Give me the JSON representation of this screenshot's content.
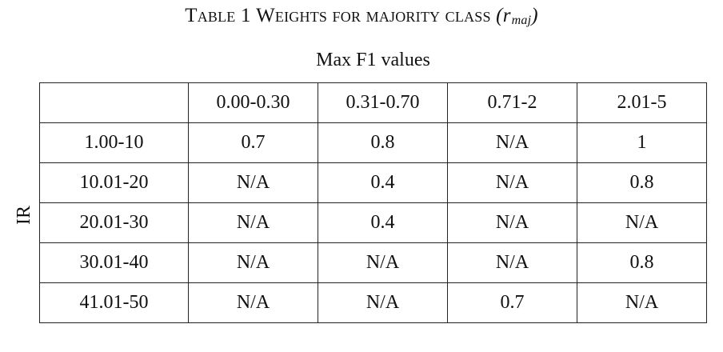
{
  "caption": {
    "label": "Table 1",
    "title": "Weights for majority class",
    "symbol_open": "(",
    "symbol_base": "r",
    "symbol_sub": "maj",
    "symbol_close": ")"
  },
  "column_group_label": "Max F1 values",
  "row_group_label": "IR",
  "table": {
    "corner": "",
    "columns": [
      "0.00-0.30",
      "0.31-0.70",
      "0.71-2",
      "2.01-5"
    ],
    "rows": [
      {
        "label": "1.00-10",
        "cells": [
          "0.7",
          "0.8",
          "N/A",
          "1"
        ]
      },
      {
        "label": "10.01-20",
        "cells": [
          "N/A",
          "0.4",
          "N/A",
          "0.8"
        ]
      },
      {
        "label": "20.01-30",
        "cells": [
          "N/A",
          "0.4",
          "N/A",
          "N/A"
        ]
      },
      {
        "label": "30.01-40",
        "cells": [
          "N/A",
          "N/A",
          "N/A",
          "0.8"
        ]
      },
      {
        "label": "41.01-50",
        "cells": [
          "N/A",
          "N/A",
          "0.7",
          "N/A"
        ]
      }
    ]
  }
}
